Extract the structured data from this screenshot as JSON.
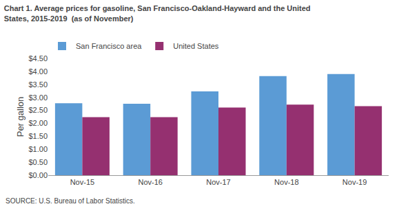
{
  "chart_data": {
    "type": "bar",
    "title": "Chart 1. Average prices for gasoline, San Francisco-Oakland-Hayward and the United\nStates, 2015-2019  (as of November)",
    "ylabel": "Per gallon",
    "source": "SOURCE: U.S. Bureau of Labor Statistics.",
    "categories": [
      "Nov-15",
      "Nov-16",
      "Nov-17",
      "Nov-18",
      "Nov-19"
    ],
    "series": [
      {
        "name": "San Francisco area",
        "color": "#5B9BD5",
        "values": [
          2.77,
          2.75,
          3.23,
          3.82,
          3.9
        ]
      },
      {
        "name": "United States",
        "color": "#953070",
        "values": [
          2.24,
          2.24,
          2.61,
          2.72,
          2.66
        ]
      }
    ],
    "ylim": [
      0,
      4.5
    ],
    "yticks": [
      {
        "value": 0.0,
        "label": "$0.00"
      },
      {
        "value": 0.5,
        "label": "$0.50"
      },
      {
        "value": 1.0,
        "label": "$1.00"
      },
      {
        "value": 1.5,
        "label": "$1.50"
      },
      {
        "value": 2.0,
        "label": "$2.00"
      },
      {
        "value": 2.5,
        "label": "$2.50"
      },
      {
        "value": 3.0,
        "label": "$3.00"
      },
      {
        "value": 3.5,
        "label": "$3.50"
      },
      {
        "value": 4.0,
        "label": "$4.00"
      },
      {
        "value": 4.5,
        "label": "$4.50"
      }
    ],
    "grid": false,
    "legend": "upper left"
  }
}
